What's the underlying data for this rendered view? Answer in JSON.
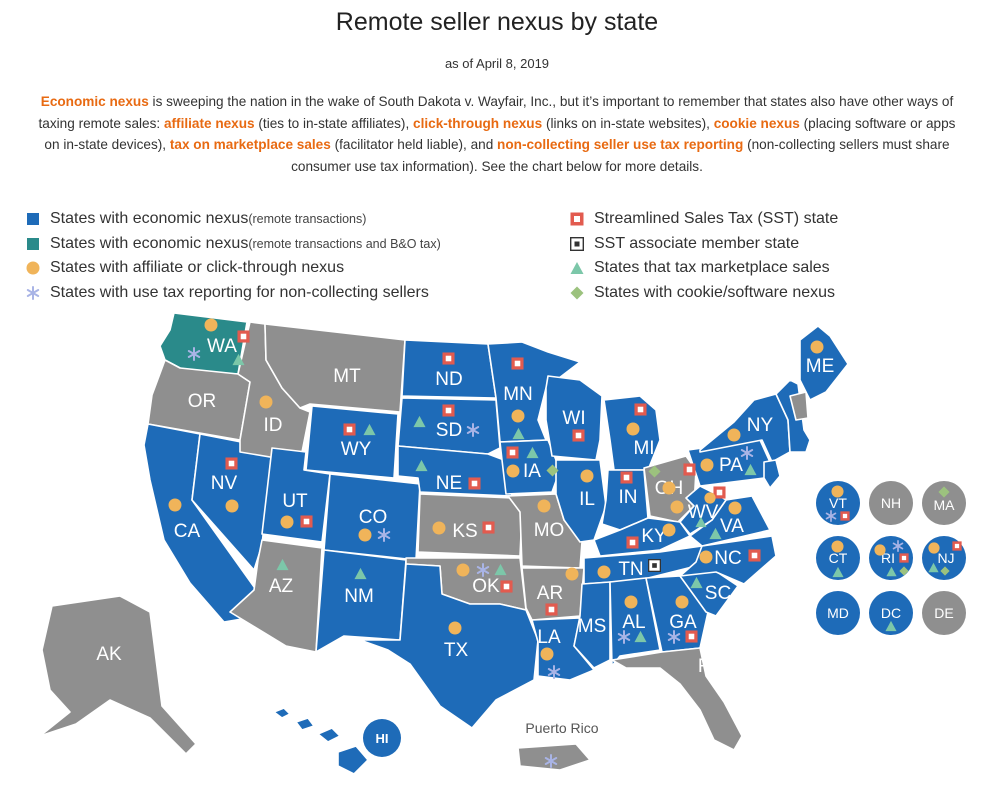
{
  "title": "Remote seller nexus by state",
  "subtitle": "as of April 8, 2019",
  "intro": {
    "t1": "Economic nexus",
    "t2": " is sweeping the nation in the wake of South Dakota v. Wayfair, Inc., but it’s important to remember that states also have other ways of taxing remote sales: ",
    "t3": "affiliate nexus",
    "t4": " (ties to in-state affiliates), ",
    "t5": "click-through nexus",
    "t6": " (links on in-state websites), ",
    "t7": "cookie nexus",
    "t8": " (placing software or apps on in-state devices), ",
    "t9": "tax on marketplace sales",
    "t10": " (facilitator held liable), and ",
    "t11": "non-collecting seller use tax reporting",
    "t12": " (non-collecting sellers must share consumer use tax information). See the chart below for more details."
  },
  "legend_left": [
    {
      "label": "States with economic nexus",
      "note": " (remote transactions)",
      "symbol": "blue-square-icon"
    },
    {
      "label": "States with economic nexus",
      "note": " (remote transactions and B&O tax)",
      "symbol": "teal-square-icon"
    },
    {
      "label": "States with affiliate or click-through nexus",
      "note": "",
      "symbol": "gold-dot-icon"
    },
    {
      "label": "States with use tax reporting for non-collecting sellers",
      "note": "",
      "symbol": "asterisk-icon"
    }
  ],
  "legend_right": [
    {
      "label": "Streamlined Sales Tax (SST) state",
      "symbol": "sst-square-icon"
    },
    {
      "label": "SST associate member state",
      "symbol": "sst-associate-icon"
    },
    {
      "label": "States that tax marketplace sales",
      "symbol": "triangle-icon"
    },
    {
      "label": "States with cookie/software nexus",
      "symbol": "diamond-icon"
    }
  ],
  "colors": {
    "economic": "#1e6bb8",
    "economic_bo": "#2a8a8a",
    "none": "#8f8f8f",
    "affiliate": "#f0b45a",
    "use_tax": "#a9b4e6",
    "sst": "#e25b4f",
    "marketplace": "#7cc7a9",
    "cookie": "#9cc27e",
    "highlight": "#e86a12"
  },
  "states": {
    "WA": "WA",
    "OR": "OR",
    "CA": "CA",
    "NV": "NV",
    "ID": "ID",
    "MT": "MT",
    "WY": "WY",
    "UT": "UT",
    "AZ": "AZ",
    "CO": "CO",
    "NM": "NM",
    "ND": "ND",
    "SD": "SD",
    "NE": "NE",
    "KS": "KS",
    "OK": "OK",
    "TX": "TX",
    "MN": "MN",
    "IA": "IA",
    "MO": "MO",
    "AR": "AR",
    "LA": "LA",
    "WI": "WI",
    "IL": "IL",
    "MI": "MI",
    "IN": "IN",
    "OH": "OH",
    "KY": "KY",
    "TN": "TN",
    "MS": "MS",
    "AL": "AL",
    "GA": "GA",
    "FL": "FL",
    "SC": "SC",
    "NC": "NC",
    "VA": "VA",
    "WV": "WV",
    "PA": "PA",
    "NY": "NY",
    "ME": "ME",
    "AK": "AK",
    "HI": "HI",
    "VT": "VT",
    "NH": "NH",
    "MA": "MA",
    "CT": "CT",
    "RI": "RI",
    "NJ": "NJ",
    "MD": "MD",
    "DC": "DC",
    "DE": "DE"
  },
  "puerto_rico": "Puerto Rico"
}
